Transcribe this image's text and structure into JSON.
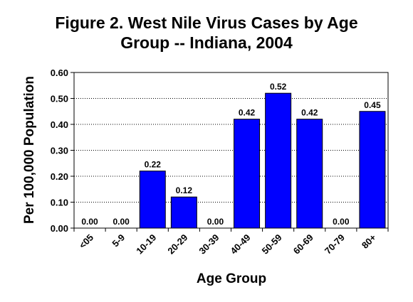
{
  "chart_data": {
    "type": "bar",
    "title_line1": "Figure 2. West Nile Virus Cases by Age",
    "title_line2": "Group -- Indiana, 2004",
    "xlabel": "Age Group",
    "ylabel": "Per 100,000 Population",
    "categories": [
      "<05",
      "5-9",
      "10-19",
      "20-29",
      "30-39",
      "40-49",
      "50-59",
      "60-69",
      "70-79",
      "80+"
    ],
    "values": [
      0.0,
      0.0,
      0.22,
      0.12,
      0.0,
      0.42,
      0.52,
      0.42,
      0.0,
      0.45
    ],
    "value_labels": [
      "0.00",
      "0.00",
      "0.22",
      "0.12",
      "0.00",
      "0.42",
      "0.52",
      "0.42",
      "0.00",
      "0.45"
    ],
    "ylim": [
      0,
      0.6
    ],
    "yticks": [
      "0.00",
      "0.10",
      "0.20",
      "0.30",
      "0.40",
      "0.50",
      "0.60"
    ],
    "grid": "dotted horizontal",
    "legend": "none",
    "bar_color": "#0000ff"
  }
}
